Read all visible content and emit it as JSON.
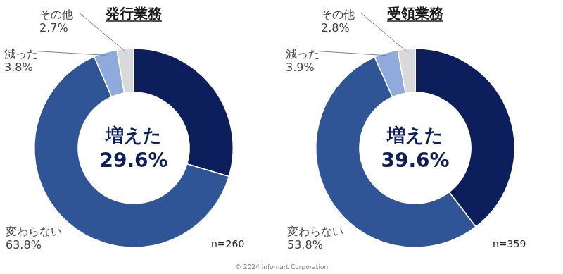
{
  "chart_data": [
    {
      "type": "doughnut",
      "title": "発行業務",
      "categories": [
        "増えた",
        "変わらない",
        "減った",
        "その他"
      ],
      "values": [
        29.6,
        63.8,
        3.8,
        2.7
      ],
      "value_labels": [
        "29.6%",
        "63.8%",
        "3.8%",
        "2.7%"
      ],
      "colors": [
        "#0c1e5b",
        "#2f5597",
        "#8faadc",
        "#d9d9d9"
      ],
      "data_labels": true,
      "legend": false,
      "annotation": "n=260"
    },
    {
      "type": "doughnut",
      "title": "受領業務",
      "categories": [
        "増えた",
        "変わらない",
        "減った",
        "その他"
      ],
      "values": [
        39.6,
        53.8,
        3.9,
        2.8
      ],
      "value_labels": [
        "39.6%",
        "53.8%",
        "3.9%",
        "2.8%"
      ],
      "colors": [
        "#0c1e5b",
        "#2f5597",
        "#8faadc",
        "#d9d9d9"
      ],
      "data_labels": true,
      "legend": false,
      "annotation": "n=359"
    }
  ],
  "footer": "© 2024 Infomart Corporation"
}
